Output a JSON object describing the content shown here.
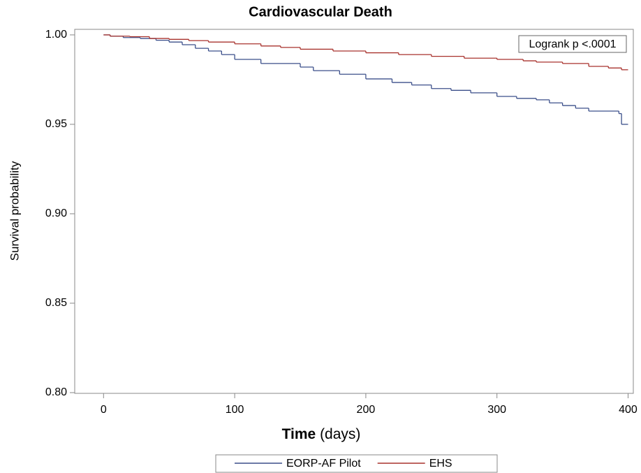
{
  "chart_data": {
    "type": "step",
    "title": "Cardiovascular Death",
    "xlabel_parts": [
      "Time",
      "(days)"
    ],
    "ylabel": "Survival probability",
    "annotation": "Logrank p <.0001",
    "xlim": [
      -22,
      404
    ],
    "xticks": [
      0,
      100,
      200,
      300,
      400
    ],
    "ylim": [
      0.7996,
      1.0031
    ],
    "yticks": [
      {
        "value": 0.8,
        "label": "0.80"
      },
      {
        "value": 0.85,
        "label": "0.85"
      },
      {
        "value": 0.9,
        "label": "0.90"
      },
      {
        "value": 0.95,
        "label": "0.95"
      },
      {
        "value": 1.0,
        "label": "1.00"
      }
    ],
    "grid": false,
    "series": [
      {
        "name": "EORP-AF Pilot",
        "color": "#3b4f8a",
        "x": [
          0,
          5,
          15,
          28,
          40,
          50,
          60,
          70,
          80,
          90,
          100,
          120,
          150,
          160,
          180,
          200,
          220,
          235,
          250,
          265,
          280,
          300,
          315,
          330,
          340,
          350,
          360,
          370,
          393,
          395,
          400
        ],
        "values": [
          1.0,
          0.9993,
          0.9985,
          0.998,
          0.997,
          0.996,
          0.9945,
          0.9925,
          0.991,
          0.989,
          0.9863,
          0.984,
          0.982,
          0.98,
          0.978,
          0.9754,
          0.9734,
          0.972,
          0.97,
          0.969,
          0.9676,
          0.9656,
          0.9645,
          0.9637,
          0.962,
          0.9605,
          0.959,
          0.9574,
          0.956,
          0.95,
          0.95
        ]
      },
      {
        "name": "EHS",
        "color": "#a8322d",
        "x": [
          0,
          5,
          20,
          35,
          50,
          65,
          80,
          100,
          120,
          135,
          150,
          175,
          200,
          225,
          250,
          275,
          300,
          320,
          330,
          350,
          370,
          385,
          395,
          400
        ],
        "values": [
          1.0,
          0.9993,
          0.999,
          0.998,
          0.9975,
          0.9968,
          0.996,
          0.995,
          0.9938,
          0.993,
          0.992,
          0.991,
          0.99,
          0.989,
          0.988,
          0.987,
          0.9863,
          0.9855,
          0.9848,
          0.984,
          0.9824,
          0.9815,
          0.9805,
          0.9805
        ]
      }
    ],
    "legend": "bottom"
  }
}
